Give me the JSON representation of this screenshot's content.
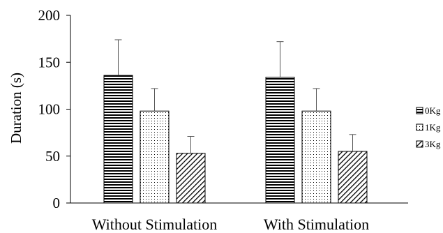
{
  "chart_data": {
    "type": "bar",
    "categories": [
      "Without Stimulation",
      "With Stimulation"
    ],
    "series": [
      {
        "name": "0Kg",
        "values": [
          136,
          134
        ],
        "errors": [
          38,
          38
        ],
        "pattern": "horizontal-lines"
      },
      {
        "name": "1Kg",
        "values": [
          98,
          98
        ],
        "errors": [
          24,
          24
        ],
        "pattern": "dots"
      },
      {
        "name": "3Kg",
        "values": [
          53,
          55
        ],
        "errors": [
          18,
          18
        ],
        "pattern": "diagonal-lines"
      }
    ],
    "title": "",
    "xlabel": "",
    "ylabel": "Duration (s)",
    "ylim": [
      0,
      200
    ],
    "yticks": [
      0,
      50,
      100,
      150,
      200
    ],
    "grid": false,
    "legend_position": "right",
    "colors": {
      "stroke": "#000000",
      "background": "#ffffff"
    }
  }
}
